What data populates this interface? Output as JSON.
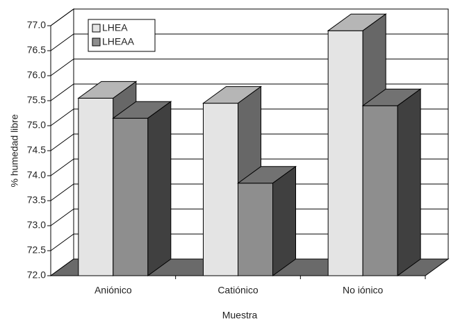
{
  "chart_data": {
    "type": "bar3d",
    "x_label": "Muestra",
    "y_label": "% humedad libre",
    "categories": [
      "Aniónico",
      "Catiónico",
      "No iónico"
    ],
    "series": [
      {
        "name": "LHEA",
        "color": "#e4e4e4",
        "values": [
          75.55,
          75.45,
          76.9
        ]
      },
      {
        "name": "LHEAA",
        "color": "#8e8e8e",
        "values": [
          75.15,
          73.85,
          75.4
        ]
      }
    ],
    "ylim": [
      72,
      77
    ],
    "yticks": [
      {
        "value": 72,
        "label": "72.0"
      },
      72.5,
      {
        "value": 73,
        "label": "73.0"
      },
      73.5,
      {
        "value": 74,
        "label": "74.0"
      },
      74.5,
      {
        "value": 75,
        "label": "75.0"
      },
      75.5,
      {
        "value": 76,
        "label": "76.0"
      },
      76.5,
      {
        "value": 77,
        "label": "77.0"
      }
    ],
    "grid": true,
    "legend": "top-left"
  }
}
